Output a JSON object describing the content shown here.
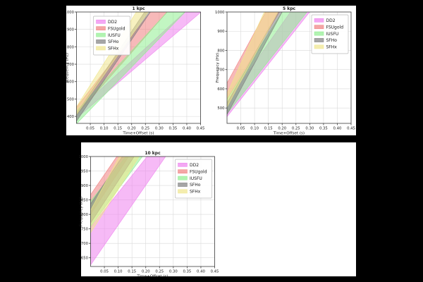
{
  "figure": {
    "background_color": "#000000",
    "panel_color": "#ffffff",
    "text_color": "#1a1a1a",
    "grid_color": "#d9d9d9",
    "spine_color": "#3c3c3c",
    "legend_border_color": "#bbbbbb"
  },
  "chart_data": [
    {
      "type": "area",
      "title": "1 kpc",
      "xlabel": "Time+Offset (s)",
      "ylabel": "Frequency (Hz)",
      "xlim": [
        0,
        0.45
      ],
      "ylim": [
        360,
        1000
      ],
      "xticks": [
        "0.05",
        "0.10",
        "0.15",
        "0.20",
        "0.25",
        "0.30",
        "0.35",
        "0.40",
        "0.45"
      ],
      "yticks": [
        "400",
        "500",
        "600",
        "700",
        "800",
        "900",
        "1000"
      ],
      "grid": true,
      "legend_position": "upper-left",
      "legend_entries": [
        "DD2",
        "FSUgold",
        "IUSFU",
        "SFHo",
        "SFHx"
      ],
      "series": [
        {
          "name": "DD2",
          "color": "#EE82EE",
          "start_freq_hz": [
            390,
            428
          ],
          "reach_1000hz_time_s": [
            0.393,
            0.452
          ]
        },
        {
          "name": "FSUgold",
          "color": "#F08080",
          "start_freq_hz": [
            408,
            452
          ],
          "reach_1000hz_time_s": [
            0.268,
            0.329
          ]
        },
        {
          "name": "IUSFU",
          "color": "#90EE90",
          "start_freq_hz": [
            358,
            430
          ],
          "reach_1000hz_time_s": [
            0.329,
            0.394
          ]
        },
        {
          "name": "SFHo",
          "color": "#808080",
          "start_freq_hz": [
            372,
            415
          ],
          "reach_1000hz_time_s": [
            0.247,
            0.268
          ]
        },
        {
          "name": "SFHx",
          "color": "#F0E68C",
          "start_freq_hz": [
            412,
            455
          ],
          "reach_1000hz_time_s": [
            0.217,
            0.26
          ]
        }
      ]
    },
    {
      "type": "area",
      "title": "5 kpc",
      "xlabel": "Time+Offset (s)",
      "ylabel": "Frequency (Hz)",
      "xlim": [
        0,
        0.45
      ],
      "ylim": [
        420,
        1000
      ],
      "xticks": [
        "0.05",
        "0.10",
        "0.15",
        "0.20",
        "0.25",
        "0.30",
        "0.35",
        "0.40",
        "0.45"
      ],
      "yticks": [
        "500",
        "600",
        "700",
        "800",
        "900",
        "1000"
      ],
      "grid": true,
      "legend_position": "upper-right",
      "legend_entries": [
        "DD2",
        "FSUgold",
        "IUSFU",
        "SFHo",
        "SFHx"
      ],
      "series": [
        {
          "name": "DD2",
          "color": "#EE82EE",
          "start_freq_hz": [
            455,
            530
          ],
          "reach_1000hz_time_s": [
            0.23,
            0.3
          ]
        },
        {
          "name": "FSUgold",
          "color": "#F08080",
          "start_freq_hz": [
            545,
            630
          ],
          "reach_1000hz_time_s": [
            0.14,
            0.19
          ]
        },
        {
          "name": "IUSFU",
          "color": "#90EE90",
          "start_freq_hz": [
            470,
            545
          ],
          "reach_1000hz_time_s": [
            0.2,
            0.29
          ]
        },
        {
          "name": "SFHo",
          "color": "#808080",
          "start_freq_hz": [
            465,
            525
          ],
          "reach_1000hz_time_s": [
            0.185,
            0.2
          ]
        },
        {
          "name": "SFHx",
          "color": "#F0E68C",
          "start_freq_hz": [
            505,
            575
          ],
          "reach_1000hz_time_s": [
            0.135,
            0.185
          ]
        }
      ]
    },
    {
      "type": "area",
      "title": "10 kpc",
      "xlabel": "Time+Offset (s)",
      "ylabel": "Frequency (Hz)",
      "xlim": [
        0,
        0.45
      ],
      "ylim": [
        620,
        1000
      ],
      "xticks": [
        "0.05",
        "0.10",
        "0.15",
        "0.20",
        "0.25",
        "0.30",
        "0.35",
        "0.40",
        "0.45"
      ],
      "yticks": [
        "650",
        "700",
        "750",
        "800",
        "850",
        "900",
        "950",
        "1000"
      ],
      "grid": true,
      "legend_position": "upper-right",
      "legend_entries": [
        "DD2",
        "FSUgold",
        "IUSFU",
        "SFHo",
        "SFHx"
      ],
      "series": [
        {
          "name": "DD2",
          "color": "#EE82EE",
          "start_freq_hz": [
            625,
            755
          ],
          "reach_1000hz_time_s": [
            0.205,
            0.272
          ]
        },
        {
          "name": "FSUgold",
          "color": "#F08080",
          "start_freq_hz": [
            800,
            868
          ],
          "reach_1000hz_time_s": [
            0.095,
            0.138
          ]
        },
        {
          "name": "IUSFU",
          "color": "#90EE90",
          "start_freq_hz": [
            758,
            845
          ],
          "reach_1000hz_time_s": [
            0.128,
            0.188
          ]
        },
        {
          "name": "SFHo",
          "color": "#808080",
          "start_freq_hz": [
            770,
            836
          ],
          "reach_1000hz_time_s": [
            0.115,
            0.158
          ]
        },
        {
          "name": "SFHx",
          "color": "#F0E68C",
          "start_freq_hz": [
            736,
            814
          ],
          "reach_1000hz_time_s": [
            0.104,
            0.176
          ]
        }
      ]
    }
  ]
}
